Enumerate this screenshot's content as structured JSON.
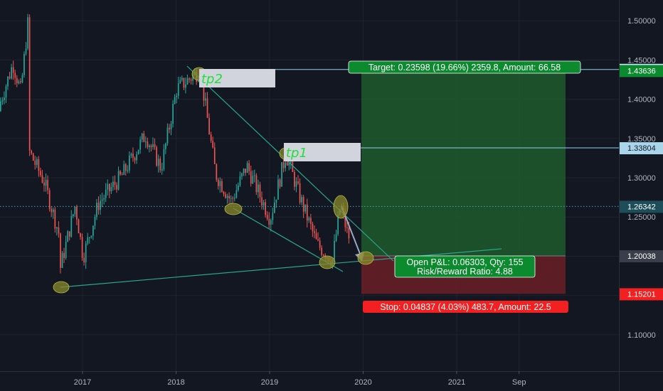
{
  "chart_data": {
    "type": "candlestick",
    "y_axis": {
      "ticks": [
        "1.50000",
        "1.45000",
        "1.40000",
        "1.35000",
        "1.30000",
        "1.25000",
        "1.20000",
        "1.15000",
        "1.10000"
      ],
      "tick_values": [
        1.5,
        1.45,
        1.4,
        1.35,
        1.3,
        1.25,
        1.2,
        1.15,
        1.1
      ],
      "range": [
        1.0537,
        1.5264
      ]
    },
    "x_axis": {
      "ticks": [
        "2017",
        "2018",
        "2019",
        "2020",
        "2021",
        "Sep"
      ]
    },
    "price_tags": [
      {
        "text": "1.43784",
        "value": 1.43784,
        "bg": "#c8e6f5",
        "color": "#131722"
      },
      {
        "text": "1.43636",
        "value": 1.43636,
        "bg": "#0b8a2e",
        "color": "#ffffff"
      },
      {
        "text": "1.33804",
        "value": 1.33804,
        "bg": "#a9d5ea",
        "color": "#131722"
      },
      {
        "text": "1.26342",
        "value": 1.26342,
        "bg": "#1e4d5a",
        "color": "#ffffff"
      },
      {
        "text": "1.20038",
        "value": 1.20038,
        "bg": "#3a3e4a",
        "color": "#ffffff"
      },
      {
        "text": "1.15201",
        "value": 1.15201,
        "bg": "#f22020",
        "color": "#ffffff"
      }
    ],
    "position": {
      "entry": 1.20038,
      "target": 1.43636,
      "stop": 1.15201,
      "target_label": "Target: 0.23598 (19.66%) 2359.8, Amount: 66.58",
      "stop_label": "Stop: 0.04837 (4.03%) 483.7, Amount: 22.5",
      "pnl_label": "Open P&L: 0.06303, Qty: 155",
      "rr_label": "Risk/Reward Ratio: 4.88"
    },
    "annotations": [
      {
        "text": "tp2",
        "value": 1.43784
      },
      {
        "text": "tp1",
        "value": 1.33804
      }
    ],
    "current_price": 1.26342,
    "series_summary": {
      "name": "",
      "swing_points": [
        [
          "2016-02",
          1.385
        ],
        [
          "2016-04",
          1.445
        ],
        [
          "2016-05",
          1.41
        ],
        [
          "2016-06",
          1.505
        ],
        [
          "2016-06",
          1.335
        ],
        [
          "2016-08",
          1.295
        ],
        [
          "2016-10",
          1.225
        ],
        [
          "2016-10",
          1.182
        ],
        [
          "2016-12",
          1.265
        ],
        [
          "2017-01",
          1.199
        ],
        [
          "2017-03",
          1.268
        ],
        [
          "2017-06",
          1.303
        ],
        [
          "2017-09",
          1.355
        ],
        [
          "2017-11",
          1.312
        ],
        [
          "2018-01",
          1.413
        ],
        [
          "2018-04",
          1.437
        ],
        [
          "2018-06",
          1.305
        ],
        [
          "2018-08",
          1.27
        ],
        [
          "2018-10",
          1.315
        ],
        [
          "2019-01",
          1.248
        ],
        [
          "2019-03",
          1.33
        ],
        [
          "2019-05",
          1.27
        ],
        [
          "2019-07",
          1.215
        ],
        [
          "2019-09",
          1.196
        ],
        [
          "2019-10",
          1.265
        ],
        [
          "2019-11",
          1.225
        ]
      ]
    }
  }
}
